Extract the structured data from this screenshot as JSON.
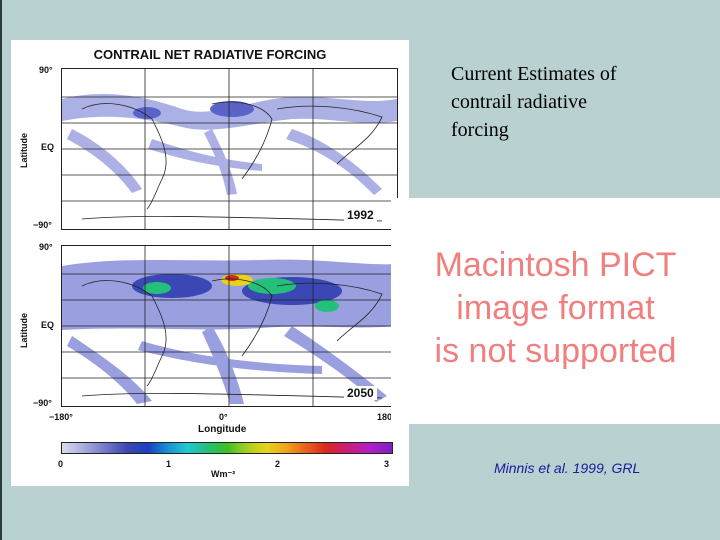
{
  "figure": {
    "title": "CONTRAIL NET RADIATIVE FORCING",
    "latitude_label": "Latitude",
    "longitude_label": "Longitude",
    "lat_ticks": [
      "90°",
      "EQ",
      "−90°"
    ],
    "lon_ticks": [
      "−180°",
      "0°",
      "180"
    ],
    "panels": [
      {
        "year": "1992"
      },
      {
        "year": "2050"
      }
    ],
    "colorbar": {
      "ticks": [
        "0",
        "1",
        "2",
        "3"
      ],
      "unit": "Wm⁻²"
    }
  },
  "slide": {
    "title_line1": "Current Estimates of",
    "title_line2": "contrail radiative",
    "title_line3": "forcing",
    "placeholder_line1": "Macintosh PICT",
    "placeholder_line2": "image format",
    "placeholder_line3": "is not supported",
    "citation": "Minnis et al. 1999, GRL"
  },
  "colors": {
    "background": "#b9d1d1",
    "placeholder_text": "#f08080",
    "citation_text": "#1a1a9c"
  }
}
